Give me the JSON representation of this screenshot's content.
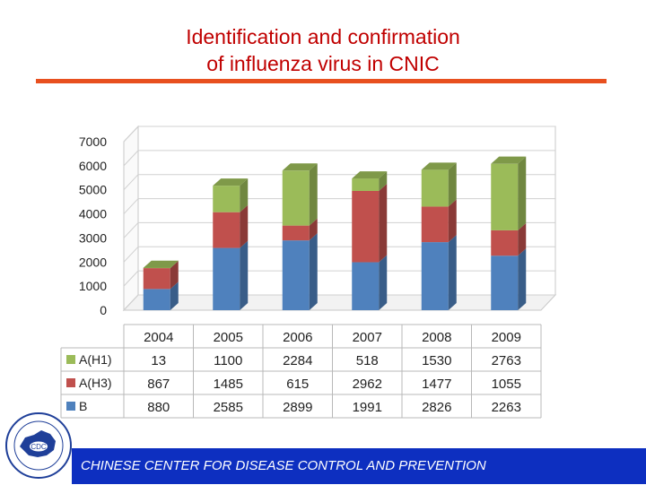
{
  "title_line1": "Identification and confirmation",
  "title_line2": "of influenza virus in CNIC",
  "footer_text": "CHINESE CENTER FOR DISEASE CONTROL AND PREVENTION",
  "logo_text": "CDC",
  "colors": {
    "title": "#c00000",
    "rule": "#e8501f",
    "footer": "#0d2fc0",
    "B": "#4f81bd",
    "A(H3)": "#c0504d",
    "A(H1)": "#9bbb59"
  },
  "chart_data": {
    "type": "bar",
    "stacked": true,
    "three_d": true,
    "categories": [
      "2004",
      "2005",
      "2006",
      "2007",
      "2008",
      "2009"
    ],
    "series": [
      {
        "name": "B",
        "values": [
          880,
          2585,
          2899,
          1991,
          2826,
          2263
        ],
        "color": "#4f81bd"
      },
      {
        "name": "A(H3)",
        "values": [
          867,
          1485,
          615,
          2962,
          1477,
          1055
        ],
        "color": "#c0504d"
      },
      {
        "name": "A(H1)",
        "values": [
          13,
          1100,
          2284,
          518,
          1530,
          2763
        ],
        "color": "#9bbb59"
      }
    ],
    "table_rows_order": [
      "A(H1)",
      "A(H3)",
      "B"
    ],
    "yticks": [
      "0",
      "1000",
      "2000",
      "3000",
      "4000",
      "5000",
      "6000",
      "7000"
    ],
    "ylim": [
      0,
      7000
    ],
    "grid": true,
    "legend": "data-table"
  }
}
